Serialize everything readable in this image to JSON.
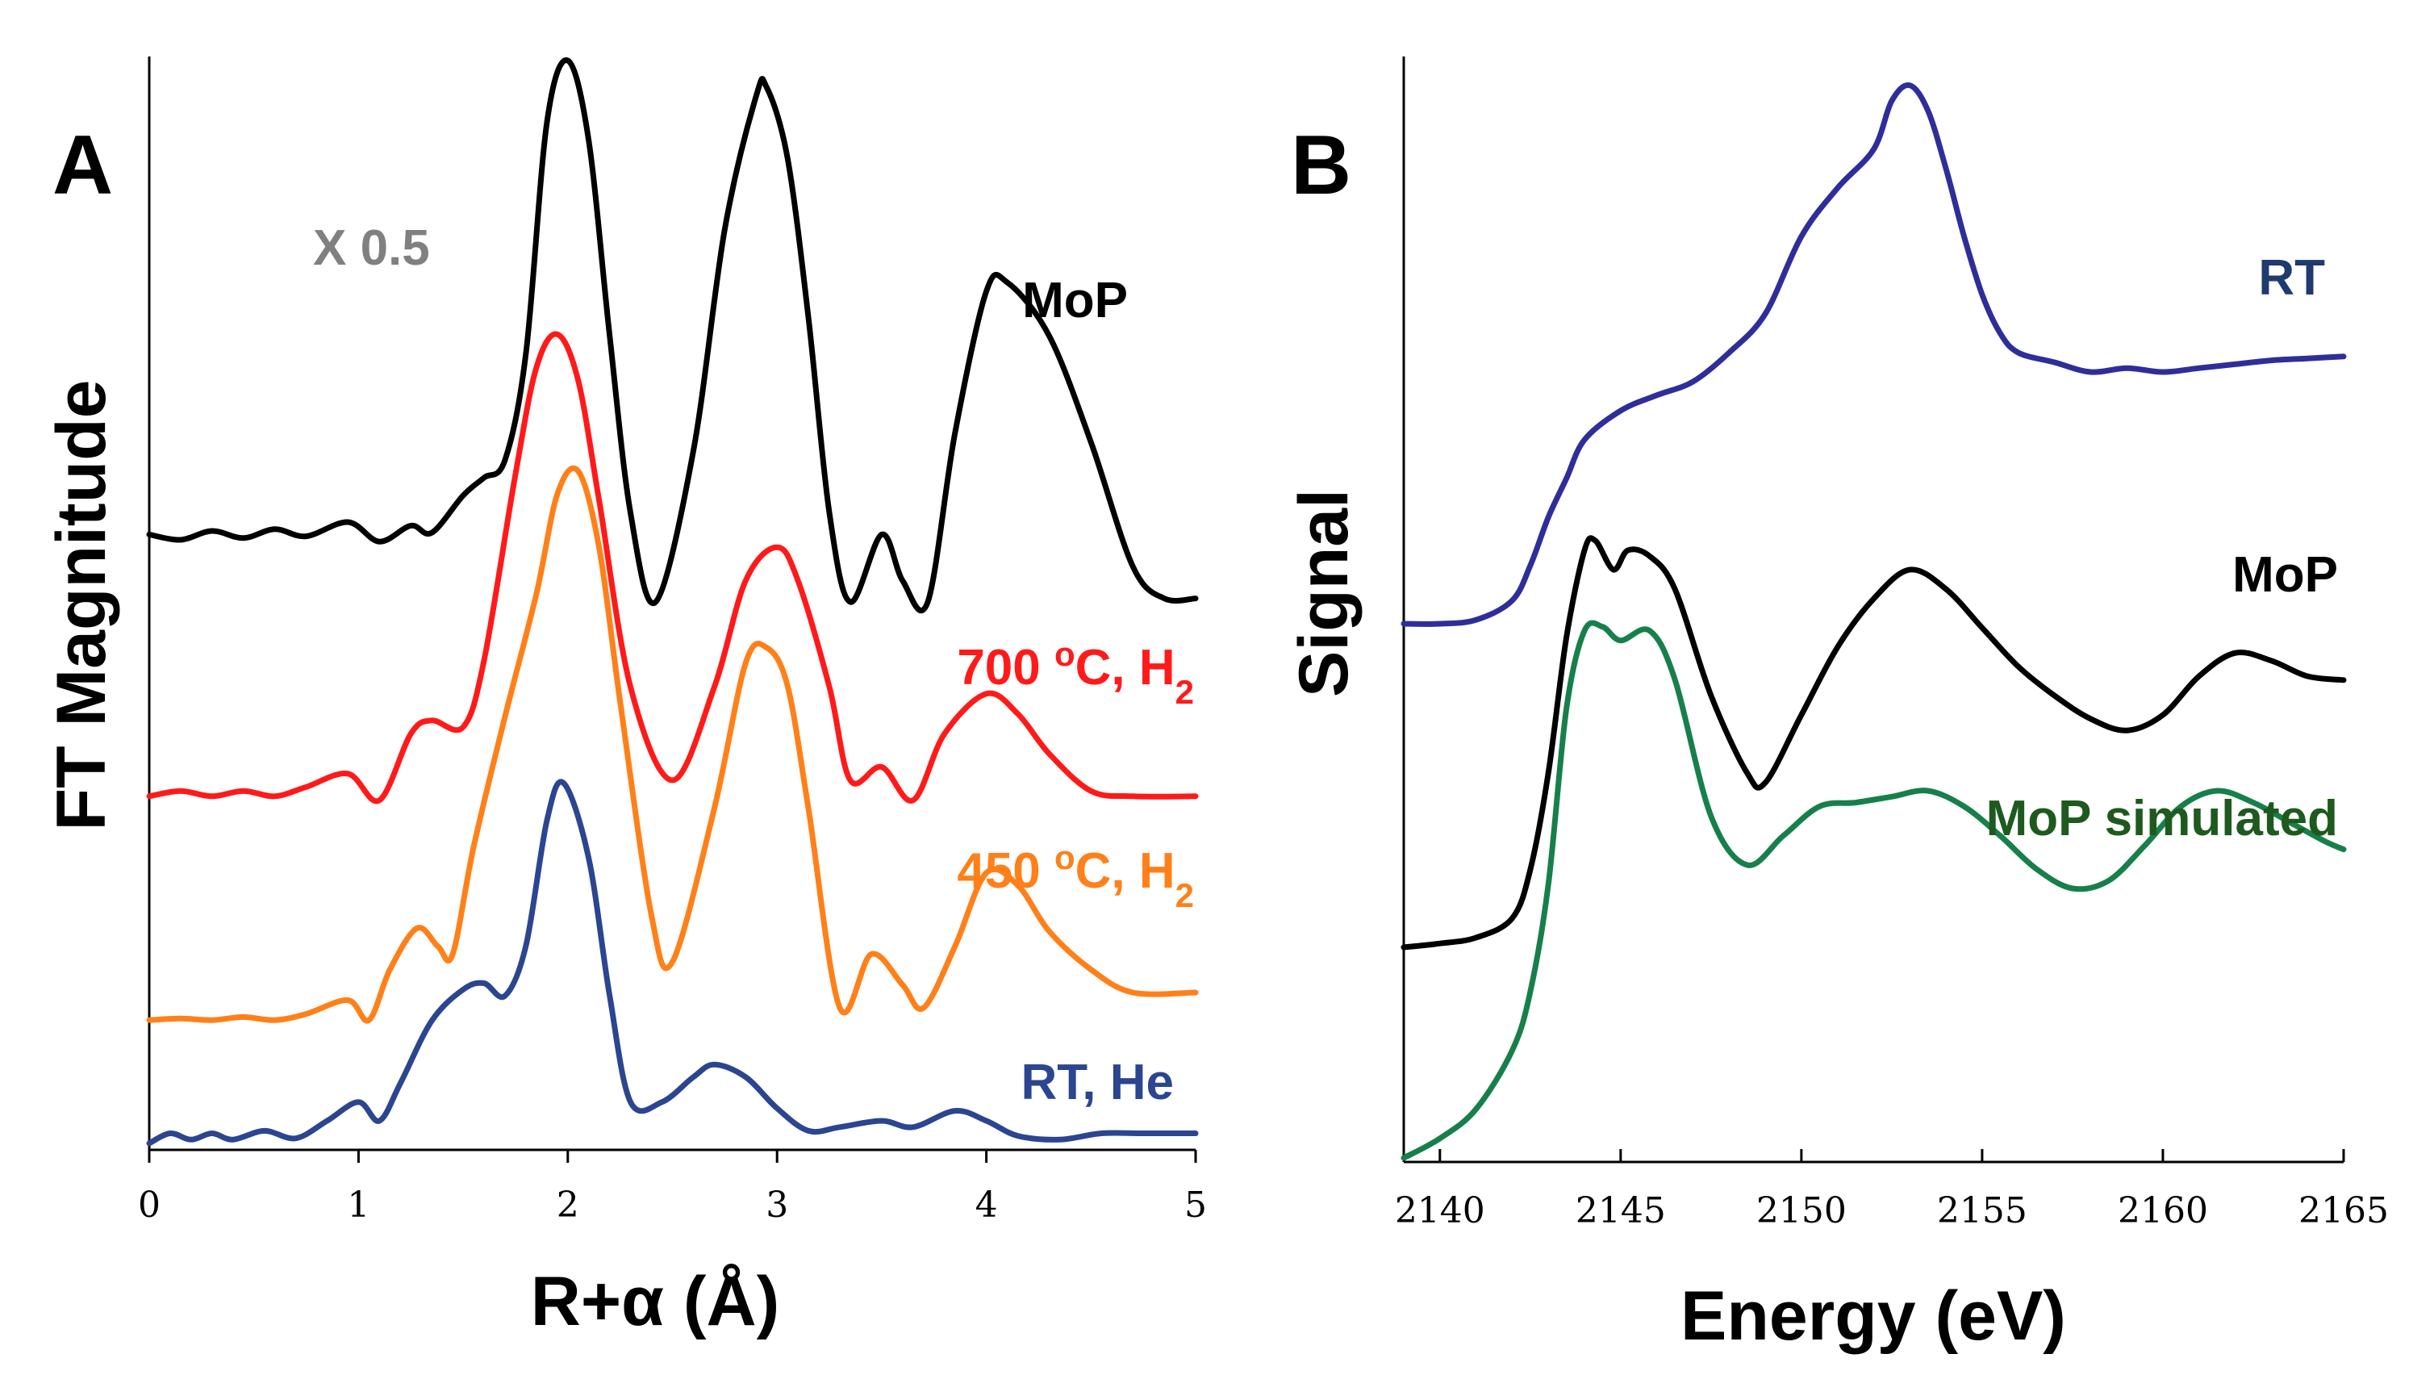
{
  "chart_data": [
    {
      "panel": "A",
      "type": "line",
      "xlabel": "R+α (Å)",
      "ylabel": "FT Magnitude",
      "xlim": [
        0,
        5
      ],
      "xticks": [
        "0",
        "1",
        "2",
        "3",
        "4",
        "5"
      ],
      "yticks": [],
      "annotation": "X 0.5",
      "series": [
        {
          "name": "MoP",
          "label": "MoP",
          "color": "#000000",
          "x": [
            0,
            0.15,
            0.3,
            0.45,
            0.6,
            0.75,
            0.95,
            1.1,
            1.25,
            1.35,
            1.5,
            1.6,
            1.7,
            1.8,
            1.9,
            2.0,
            2.1,
            2.2,
            2.3,
            2.42,
            2.6,
            2.75,
            2.9,
            2.95,
            3.05,
            3.15,
            3.25,
            3.35,
            3.5,
            3.6,
            3.72,
            3.85,
            4.0,
            4.1,
            4.3,
            4.5,
            4.7,
            4.85,
            5.0
          ],
          "values": [
            0.48,
            0.45,
            0.5,
            0.46,
            0.51,
            0.47,
            0.55,
            0.44,
            0.53,
            0.49,
            0.7,
            0.8,
            0.9,
            1.5,
            2.8,
            3.15,
            2.7,
            1.6,
            0.6,
            0.1,
            0.95,
            2.2,
            2.95,
            3.0,
            2.6,
            1.7,
            0.6,
            0.1,
            0.48,
            0.22,
            0.1,
            1.05,
            1.85,
            1.9,
            1.6,
            1.0,
            0.3,
            0.12,
            0.12
          ]
        },
        {
          "name": "700 oC, H2",
          "label_main": "700 ",
          "label_sup": "o",
          "label_mid": "C, H",
          "label_sub": "2",
          "color": "#ff1a1a",
          "x": [
            0,
            0.15,
            0.3,
            0.45,
            0.6,
            0.75,
            0.95,
            1.1,
            1.25,
            1.35,
            1.5,
            1.6,
            1.75,
            1.85,
            1.95,
            2.05,
            2.15,
            2.3,
            2.5,
            2.7,
            2.85,
            3.0,
            3.1,
            3.25,
            3.35,
            3.5,
            3.65,
            3.8,
            4.0,
            4.15,
            4.3,
            4.5,
            4.7,
            5.0
          ],
          "values": [
            0.08,
            0.12,
            0.08,
            0.12,
            0.08,
            0.15,
            0.25,
            0.05,
            0.55,
            0.65,
            0.6,
            1.1,
            2.5,
            3.3,
            3.55,
            3.2,
            2.3,
            0.9,
            0.2,
            0.9,
            1.7,
            1.95,
            1.7,
            0.9,
            0.2,
            0.3,
            0.05,
            0.55,
            0.85,
            0.7,
            0.4,
            0.12,
            0.08,
            0.08
          ]
        },
        {
          "name": "450 oC, H2",
          "label_main": "450 ",
          "label_sup": "o",
          "label_mid": "C, H",
          "label_sub": "2",
          "color": "#ff8019",
          "x": [
            0,
            0.15,
            0.3,
            0.45,
            0.6,
            0.75,
            0.95,
            1.05,
            1.15,
            1.28,
            1.38,
            1.45,
            1.55,
            1.7,
            1.85,
            1.95,
            2.05,
            2.15,
            2.25,
            2.4,
            2.5,
            2.7,
            2.85,
            2.95,
            3.05,
            3.15,
            3.3,
            3.45,
            3.6,
            3.7,
            3.85,
            4.0,
            4.15,
            4.3,
            4.5,
            4.7,
            5.0
          ],
          "values": [
            0.02,
            0.03,
            0.02,
            0.04,
            0.02,
            0.06,
            0.15,
            0.02,
            0.35,
            0.62,
            0.5,
            0.45,
            1.15,
            2.0,
            2.8,
            3.45,
            3.6,
            3.1,
            2.1,
            0.7,
            0.4,
            1.4,
            2.35,
            2.45,
            2.2,
            1.4,
            0.1,
            0.45,
            0.25,
            0.1,
            0.5,
            0.98,
            0.9,
            0.6,
            0.35,
            0.2,
            0.2
          ]
        },
        {
          "name": "RT, He",
          "label": "RT, He",
          "color": "#2b4590",
          "x": [
            0,
            0.1,
            0.2,
            0.3,
            0.4,
            0.55,
            0.7,
            0.85,
            1.0,
            1.1,
            1.2,
            1.35,
            1.5,
            1.6,
            1.7,
            1.8,
            1.9,
            1.98,
            2.1,
            2.2,
            2.3,
            2.45,
            2.6,
            2.7,
            2.85,
            3.0,
            3.15,
            3.3,
            3.5,
            3.65,
            3.85,
            4.0,
            4.15,
            4.35,
            4.55,
            4.75,
            5.0
          ],
          "values": [
            0.02,
            0.1,
            0.05,
            0.1,
            0.05,
            0.12,
            0.06,
            0.2,
            0.35,
            0.2,
            0.5,
            1.0,
            1.25,
            1.3,
            1.2,
            1.6,
            2.6,
            2.9,
            2.3,
            1.2,
            0.35,
            0.35,
            0.55,
            0.65,
            0.55,
            0.3,
            0.12,
            0.15,
            0.2,
            0.15,
            0.28,
            0.2,
            0.08,
            0.05,
            0.1,
            0.1,
            0.1
          ]
        }
      ]
    },
    {
      "panel": "B",
      "type": "line",
      "xlabel": "Energy (eV)",
      "ylabel": "Signal",
      "xlim": [
        2139,
        2165
      ],
      "xticks": [
        "2140",
        "2145",
        "2150",
        "2155",
        "2160",
        "2165"
      ],
      "yticks": [],
      "series": [
        {
          "name": "RT",
          "label": "RT",
          "color": "#2e2e9b",
          "x": [
            2139,
            2140,
            2141,
            2142,
            2142.5,
            2143,
            2143.5,
            2144,
            2145,
            2146,
            2147,
            2148,
            2149,
            2150,
            2151,
            2152,
            2152.5,
            2153,
            2153.5,
            2154,
            2154.5,
            2155,
            2155.5,
            2156,
            2157,
            2158,
            2159,
            2160,
            2161,
            2162,
            2163,
            2164,
            2165
          ],
          "values": [
            2.3,
            2.3,
            2.32,
            2.42,
            2.6,
            2.85,
            3.05,
            3.25,
            3.4,
            3.48,
            3.55,
            3.7,
            3.9,
            4.3,
            4.55,
            4.75,
            5.0,
            5.08,
            4.95,
            4.65,
            4.3,
            4.0,
            3.8,
            3.7,
            3.65,
            3.6,
            3.62,
            3.6,
            3.62,
            3.64,
            3.66,
            3.67,
            3.68
          ]
        },
        {
          "name": "MoP",
          "label": "MoP",
          "color": "#000000",
          "x": [
            2139,
            2140,
            2141,
            2142,
            2142.5,
            2143,
            2143.5,
            2144,
            2144.3,
            2144.8,
            2145.2,
            2145.8,
            2146.5,
            2147.5,
            2148.5,
            2149,
            2150,
            2151,
            2152,
            2153,
            2154,
            2155,
            2156,
            2157,
            2158,
            2159,
            2160,
            2161,
            2162,
            2163,
            2164,
            2165
          ],
          "values": [
            0.9,
            0.92,
            0.95,
            1.05,
            1.3,
            1.8,
            2.5,
            2.95,
            3.0,
            2.85,
            2.95,
            2.92,
            2.75,
            2.2,
            1.8,
            1.75,
            2.1,
            2.45,
            2.7,
            2.85,
            2.75,
            2.55,
            2.35,
            2.2,
            2.08,
            2.02,
            2.1,
            2.3,
            2.42,
            2.38,
            2.3,
            2.28
          ]
        },
        {
          "name": "MoP simulated",
          "label": "MoP simulated",
          "color": "#17804a",
          "x": [
            2139,
            2140,
            2141,
            2142,
            2142.5,
            2143,
            2143.5,
            2144,
            2144.5,
            2145,
            2145.8,
            2146.5,
            2147.5,
            2148.5,
            2149.5,
            2150.5,
            2151.5,
            2152.5,
            2153.5,
            2154.5,
            2155.5,
            2156.5,
            2157.5,
            2158.5,
            2159.5,
            2160.5,
            2161.5,
            2162.5,
            2163.5,
            2164.5,
            2165
          ],
          "values": [
            0.0,
            0.1,
            0.25,
            0.55,
            0.85,
            1.4,
            2.3,
            2.7,
            2.72,
            2.65,
            2.7,
            2.45,
            1.75,
            1.5,
            1.65,
            1.8,
            1.82,
            1.85,
            1.88,
            1.8,
            1.65,
            1.48,
            1.38,
            1.42,
            1.6,
            1.8,
            1.88,
            1.82,
            1.72,
            1.62,
            1.58
          ]
        }
      ]
    }
  ]
}
